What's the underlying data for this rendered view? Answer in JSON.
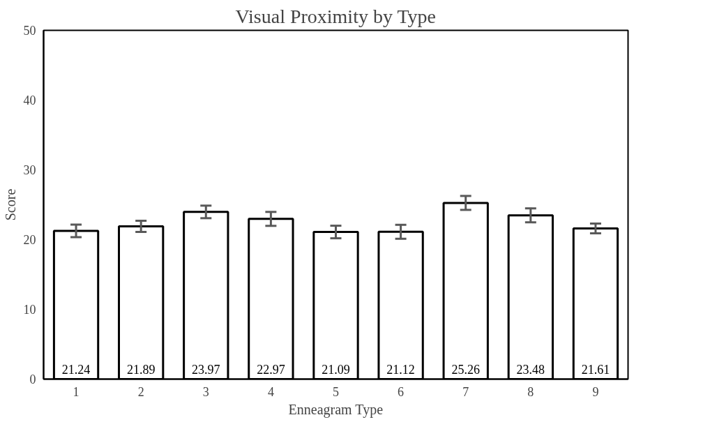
{
  "chart_data": {
    "type": "bar",
    "title": "Visual Proximity by Type",
    "xlabel": "Enneagram Type",
    "ylabel": "Score",
    "categories": [
      "1",
      "2",
      "3",
      "4",
      "5",
      "6",
      "7",
      "8",
      "9"
    ],
    "values": [
      21.24,
      21.89,
      23.97,
      22.97,
      21.09,
      21.12,
      25.26,
      23.48,
      21.61
    ],
    "errors": [
      0.9,
      0.8,
      0.9,
      1.0,
      0.9,
      1.0,
      1.0,
      1.0,
      0.7
    ],
    "color": "#ffffff",
    "ylim": [
      0,
      50
    ],
    "yticks": [
      0,
      10,
      20,
      30,
      40,
      50
    ],
    "grid": false,
    "data_labels": true
  }
}
